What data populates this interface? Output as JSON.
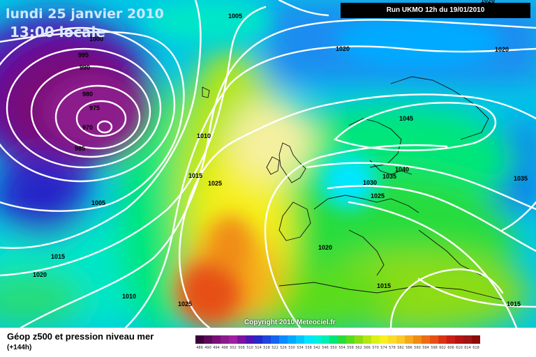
{
  "header": {
    "date": "lundi 25 janvier 2010",
    "local_time": "13:00 locale",
    "run_info": "Run UKMO 12h du 19/01/2010"
  },
  "copyright": "Copyright 2010 Meteociel.fr",
  "footer": {
    "title": "Géop z500 et pression niveau mer",
    "subtitle": "(+144h)"
  },
  "legend": {
    "values": [
      "486",
      "490",
      "494",
      "498",
      "502",
      "506",
      "510",
      "514",
      "518",
      "522",
      "526",
      "530",
      "534",
      "538",
      "542",
      "546",
      "550",
      "554",
      "558",
      "562",
      "566",
      "570",
      "574",
      "578",
      "582",
      "586",
      "590",
      "594",
      "598",
      "602",
      "606",
      "610",
      "614",
      "618"
    ],
    "colors": [
      "#3c003c",
      "#5a0a5a",
      "#780f78",
      "#8c1a8c",
      "#a01ea0",
      "#7814a0",
      "#5014b4",
      "#2828c8",
      "#1e46dc",
      "#1464f0",
      "#0a8cff",
      "#00aaff",
      "#00c8ff",
      "#00e6ff",
      "#00f0dc",
      "#00f0b4",
      "#00e678",
      "#28dc3c",
      "#5adc1e",
      "#8cdc14",
      "#b4e614",
      "#dcf014",
      "#f5f01e",
      "#fadc28",
      "#fac828",
      "#f5aa1e",
      "#f08c14",
      "#eb6e14",
      "#e65014",
      "#dc3214",
      "#c81e14",
      "#b41414",
      "#a01414",
      "#8c0a0a"
    ]
  },
  "isobars": [
    {
      "label": "1005"
    },
    {
      "label": "1000"
    },
    {
      "label": "995"
    },
    {
      "label": "990"
    },
    {
      "label": "980"
    },
    {
      "label": "975"
    },
    {
      "label": "970"
    },
    {
      "label": "985"
    },
    {
      "label": "1005"
    },
    {
      "label": "1010"
    },
    {
      "label": "1015"
    },
    {
      "label": "1025"
    },
    {
      "label": "1020"
    },
    {
      "label": "1015"
    },
    {
      "label": "1020"
    },
    {
      "label": "1010"
    },
    {
      "label": "1025"
    },
    {
      "label": "1020"
    },
    {
      "label": "1020"
    },
    {
      "label": "1045"
    },
    {
      "label": "1040"
    },
    {
      "label": "1035"
    },
    {
      "label": "1030"
    },
    {
      "label": "1025"
    },
    {
      "label": "1035"
    },
    {
      "label": "1020"
    },
    {
      "label": "1015"
    },
    {
      "label": "1015"
    },
    {
      "label": "1005"
    }
  ]
}
